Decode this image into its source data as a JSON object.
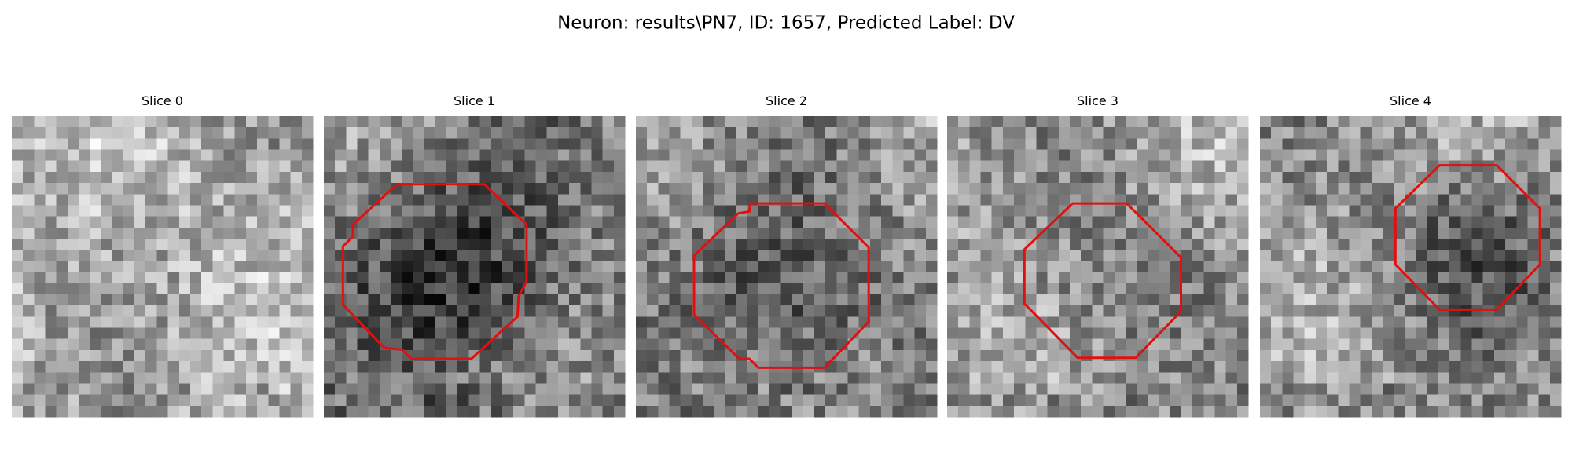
{
  "header": {
    "title": "Neuron: results\\PN7, ID: 1657, Predicted Label: DV"
  },
  "panels": [
    {
      "title": "Slice 0"
    },
    {
      "title": "Slice 1"
    },
    {
      "title": "Slice 2"
    },
    {
      "title": "Slice 3"
    },
    {
      "title": "Slice 4"
    }
  ]
}
